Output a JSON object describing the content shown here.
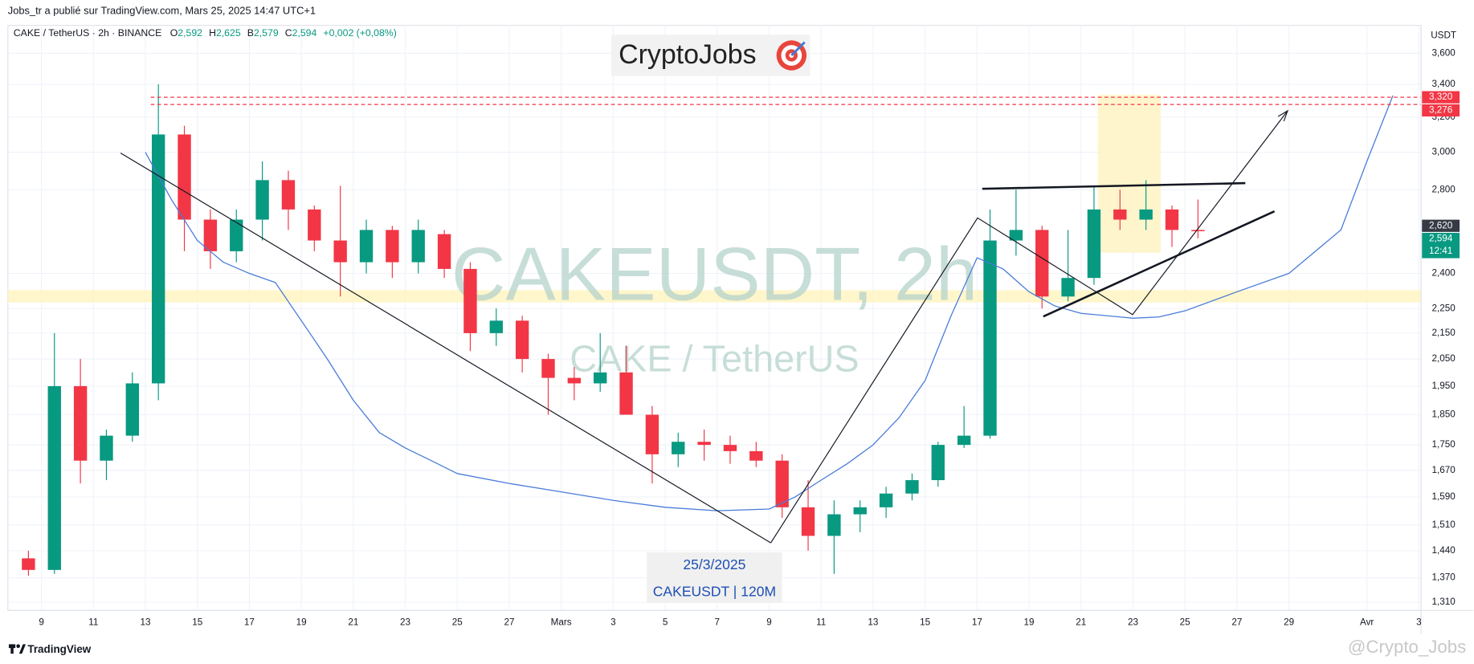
{
  "header": {
    "published": "Jobs_tr a publié sur TradingView.com, Mars 25, 2025 14:47 UTC+1"
  },
  "legend": {
    "symbol": "CAKE / TetherUS · 2h · BINANCE",
    "items": [
      {
        "key": "O",
        "value": "2,592"
      },
      {
        "key": "H",
        "value": "2,625"
      },
      {
        "key": "B",
        "value": "2,579"
      },
      {
        "key": "C",
        "value": "2,594"
      }
    ],
    "change": "+0,002 (+0,08%)"
  },
  "logo": "CryptoJobs",
  "watermark": {
    "title": "CAKEUSDT, 2h",
    "subtitle": "CAKE / TetherUS"
  },
  "info_box": {
    "date": "25/3/2025",
    "caption": "CAKEUSDT | 120M"
  },
  "footer": {
    "brand": "TradingView",
    "author": "@Crypto_Jobs"
  },
  "chart_data": {
    "type": "candlestick",
    "log_scale": true,
    "grid": true,
    "y_unit": "USDT",
    "xlim": [
      "2025-02-07T17:00",
      "2025-04-03T02:00"
    ],
    "ylim": [
      1290,
      3790
    ],
    "yticks": [
      {
        "value": 3600,
        "label": "3,600"
      },
      {
        "value": 3400,
        "label": "3,400"
      },
      {
        "value": 3200,
        "label": "3,200"
      },
      {
        "value": 3000,
        "label": "3,000"
      },
      {
        "value": 2800,
        "label": "2,800"
      },
      {
        "value": 2400,
        "label": "2,400"
      },
      {
        "value": 2250,
        "label": "2,250"
      },
      {
        "value": 2150,
        "label": "2,150"
      },
      {
        "value": 2050,
        "label": "2,050"
      },
      {
        "value": 1950,
        "label": "1,950"
      },
      {
        "value": 1850,
        "label": "1,850"
      },
      {
        "value": 1750,
        "label": "1,750"
      },
      {
        "value": 1670,
        "label": "1,670"
      },
      {
        "value": 1590,
        "label": "1,590"
      },
      {
        "value": 1510,
        "label": "1,510"
      },
      {
        "value": 1440,
        "label": "1,440"
      },
      {
        "value": 1370,
        "label": "1,370"
      },
      {
        "value": 1310,
        "label": "1,310"
      }
    ],
    "xticks": [
      {
        "value": "2025-02-09T00:00",
        "label": "9"
      },
      {
        "value": "2025-02-11T00:00",
        "label": "11"
      },
      {
        "value": "2025-02-13T00:00",
        "label": "13"
      },
      {
        "value": "2025-02-15T00:00",
        "label": "15"
      },
      {
        "value": "2025-02-17T00:00",
        "label": "17"
      },
      {
        "value": "2025-02-19T00:00",
        "label": "19"
      },
      {
        "value": "2025-02-21T00:00",
        "label": "21"
      },
      {
        "value": "2025-02-23T00:00",
        "label": "23"
      },
      {
        "value": "2025-02-25T00:00",
        "label": "25"
      },
      {
        "value": "2025-02-27T00:00",
        "label": "27"
      },
      {
        "value": "2025-03-01T00:00",
        "label": "Mars"
      },
      {
        "value": "2025-03-03T00:00",
        "label": "3"
      },
      {
        "value": "2025-03-05T00:00",
        "label": "5"
      },
      {
        "value": "2025-03-07T00:00",
        "label": "7"
      },
      {
        "value": "2025-03-09T00:00",
        "label": "9"
      },
      {
        "value": "2025-03-11T00:00",
        "label": "11"
      },
      {
        "value": "2025-03-13T00:00",
        "label": "13"
      },
      {
        "value": "2025-03-15T00:00",
        "label": "15"
      },
      {
        "value": "2025-03-17T00:00",
        "label": "17"
      },
      {
        "value": "2025-03-19T00:00",
        "label": "19"
      },
      {
        "value": "2025-03-21T00:00",
        "label": "21"
      },
      {
        "value": "2025-03-23T00:00",
        "label": "23"
      },
      {
        "value": "2025-03-25T00:00",
        "label": "25"
      },
      {
        "value": "2025-03-27T00:00",
        "label": "27"
      },
      {
        "value": "2025-03-29T00:00",
        "label": "29"
      },
      {
        "value": "2025-04-01T00:00",
        "label": "Avr"
      },
      {
        "value": "2025-04-03T00:00",
        "label": "3"
      }
    ],
    "up_color": "#089981",
    "down_color": "#f23645",
    "series": [
      {
        "x": [
          "2025-02-08T12:00",
          "2025-02-09T12:00",
          "2025-02-10T12:00",
          "2025-02-11T12:00",
          "2025-02-12T12:00",
          "2025-02-13T12:00",
          "2025-02-14T12:00",
          "2025-02-15T12:00",
          "2025-02-16T12:00",
          "2025-02-17T12:00",
          "2025-02-18T12:00",
          "2025-02-19T12:00",
          "2025-02-20T12:00",
          "2025-02-21T12:00",
          "2025-02-22T12:00",
          "2025-02-23T12:00",
          "2025-02-24T12:00",
          "2025-02-25T12:00",
          "2025-02-26T12:00",
          "2025-02-27T12:00",
          "2025-02-28T12:00",
          "2025-03-01T12:00",
          "2025-03-02T12:00",
          "2025-03-03T12:00",
          "2025-03-04T12:00",
          "2025-03-05T12:00",
          "2025-03-06T12:00",
          "2025-03-07T12:00",
          "2025-03-08T12:00",
          "2025-03-09T12:00",
          "2025-03-10T12:00",
          "2025-03-11T12:00",
          "2025-03-12T12:00",
          "2025-03-13T12:00",
          "2025-03-14T12:00",
          "2025-03-15T12:00",
          "2025-03-16T12:00",
          "2025-03-17T12:00",
          "2025-03-18T12:00",
          "2025-03-19T12:00",
          "2025-03-20T12:00",
          "2025-03-21T12:00",
          "2025-03-22T12:00",
          "2025-03-23T12:00",
          "2025-03-24T12:00",
          "2025-03-25T12:00"
        ],
        "open": [
          1420,
          1390,
          1950,
          1700,
          1780,
          1960,
          3100,
          2650,
          2500,
          2650,
          2850,
          2700,
          2550,
          2450,
          2600,
          2450,
          2580,
          2420,
          2150,
          2200,
          2050,
          1980,
          1960,
          2000,
          1850,
          1720,
          1760,
          1750,
          1730,
          1700,
          1560,
          1480,
          1540,
          1560,
          1600,
          1640,
          1750,
          1780,
          2550,
          2600,
          2300,
          2380,
          2700,
          2650,
          2700,
          2600
        ],
        "high": [
          1440,
          2150,
          2050,
          1800,
          2000,
          3400,
          3150,
          2700,
          2700,
          2950,
          2900,
          2720,
          2820,
          2650,
          2620,
          2650,
          2600,
          2450,
          2250,
          2220,
          2070,
          2020,
          2150,
          2100,
          1880,
          1790,
          1800,
          1780,
          1760,
          1720,
          1640,
          1580,
          1580,
          1620,
          1660,
          1760,
          1880,
          2700,
          2800,
          2620,
          2600,
          2820,
          2800,
          2850,
          2720,
          2750
        ],
        "low": [
          1375,
          1380,
          1630,
          1640,
          1760,
          1900,
          2500,
          2420,
          2450,
          2550,
          2600,
          2500,
          2300,
          2400,
          2380,
          2400,
          2380,
          2080,
          2100,
          2000,
          1850,
          1900,
          1930,
          1850,
          1630,
          1680,
          1700,
          1690,
          1680,
          1530,
          1440,
          1380,
          1490,
          1530,
          1580,
          1620,
          1740,
          1770,
          2480,
          2250,
          2280,
          2350,
          2600,
          2600,
          2520,
          2560
        ],
        "close": [
          1390,
          1950,
          1700,
          1780,
          1960,
          3100,
          2650,
          2500,
          2650,
          2850,
          2700,
          2550,
          2450,
          2600,
          2450,
          2600,
          2420,
          2150,
          2200,
          2050,
          1980,
          1960,
          2000,
          1850,
          1720,
          1760,
          1750,
          1730,
          1700,
          1560,
          1480,
          1540,
          1560,
          1600,
          1640,
          1750,
          1780,
          2550,
          2600,
          2300,
          2380,
          2700,
          2650,
          2700,
          2600,
          2594
        ]
      },
      {
        "type": "line",
        "color": "#4a7bd9",
        "x": [
          "2025-02-13T00:00",
          "2025-02-14T00:00",
          "2025-02-15T00:00",
          "2025-02-16T00:00",
          "2025-02-17T00:00",
          "2025-02-18T00:00",
          "2025-02-19T00:00",
          "2025-02-20T00:00",
          "2025-02-21T00:00",
          "2025-02-22T00:00",
          "2025-02-23T00:00",
          "2025-02-24T00:00",
          "2025-02-25T00:00",
          "2025-02-27T00:00",
          "2025-03-01T00:00",
          "2025-03-03T00:00",
          "2025-03-05T00:00",
          "2025-03-07T00:00",
          "2025-03-09T00:00",
          "2025-03-10T00:00",
          "2025-03-11T00:00",
          "2025-03-12T00:00",
          "2025-03-13T00:00",
          "2025-03-14T00:00",
          "2025-03-15T00:00",
          "2025-03-16T00:00",
          "2025-03-17T00:00",
          "2025-03-18T00:00",
          "2025-03-19T00:00",
          "2025-03-20T00:00",
          "2025-03-21T00:00",
          "2025-03-23T00:00",
          "2025-03-24T00:00",
          "2025-03-25T00:00",
          "2025-03-27T00:00",
          "2025-03-29T00:00",
          "2025-03-31T00:00",
          "2025-04-01T00:00",
          "2025-04-02T00:00"
        ],
        "values": [
          3000,
          2750,
          2550,
          2450,
          2400,
          2360,
          2200,
          2050,
          1900,
          1790,
          1740,
          1700,
          1660,
          1630,
          1605,
          1580,
          1560,
          1550,
          1555,
          1590,
          1640,
          1690,
          1750,
          1840,
          1970,
          2220,
          2470,
          2420,
          2320,
          2260,
          2230,
          2210,
          2215,
          2240,
          2320,
          2400,
          2600,
          2950,
          3330
        ]
      }
    ],
    "price_labels": [
      {
        "value": 3320,
        "label": "3,320",
        "color": "#f23645",
        "dashed": true
      },
      {
        "value": 3276,
        "label": "3,276",
        "color": "#f23645",
        "dashed": true
      },
      {
        "value": 2620,
        "label": "2,620",
        "color": "#363a45",
        "dashed": false
      },
      {
        "value": 2594,
        "label": "2,594",
        "sublabel": "12:41",
        "color": "#089981",
        "dashed": false
      }
    ]
  }
}
